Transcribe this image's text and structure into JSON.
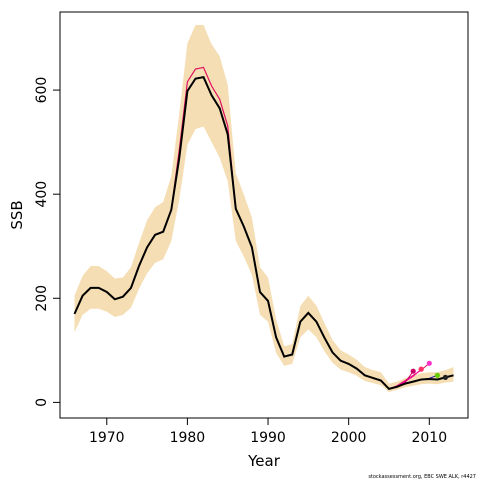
{
  "chart_data": {
    "type": "line",
    "title": "",
    "xlabel": "Year",
    "ylabel": "SSB",
    "footnote": "stockassessment.org, EBC SWE ALK, r4427",
    "xlim": [
      1964.2,
      2014.8
    ],
    "ylim": [
      -30,
      750
    ],
    "xticks": [
      1970,
      1980,
      1990,
      2000,
      2010
    ],
    "yticks": [
      0,
      200,
      400,
      600
    ],
    "grid": false,
    "colors": {
      "band": "#f5deb3",
      "main": "#000000",
      "retro_lines": [
        "#e0115f",
        "#ff00aa",
        "#cc0066",
        "#1a1a99"
      ],
      "retro_points": [
        "#ff33cc",
        "#ff3366",
        "#cc0066",
        "#66cc00",
        "#222222"
      ]
    },
    "years": [
      1966,
      1967,
      1968,
      1969,
      1970,
      1971,
      1972,
      1973,
      1974,
      1975,
      1976,
      1977,
      1978,
      1979,
      1980,
      1981,
      1982,
      1983,
      1984,
      1985,
      1986,
      1987,
      1988,
      1989,
      1990,
      1991,
      1992,
      1993,
      1994,
      1995,
      1996,
      1997,
      1998,
      1999,
      2000,
      2001,
      2002,
      2003,
      2004,
      2005,
      2006,
      2007,
      2008,
      2009,
      2010,
      2011,
      2012,
      2013
    ],
    "series": [
      {
        "role": "estimate",
        "values": [
          170,
          205,
          220,
          220,
          212,
          198,
          203,
          220,
          262,
          298,
          322,
          328,
          370,
          470,
          598,
          622,
          625,
          590,
          565,
          515,
          372,
          338,
          298,
          212,
          195,
          125,
          88,
          92,
          155,
          172,
          155,
          124,
          96,
          80,
          74,
          65,
          52,
          47,
          42,
          26,
          30,
          36,
          40,
          44,
          45,
          44,
          48,
          52
        ]
      },
      {
        "role": "upper-confidence-bound",
        "values": [
          205,
          243,
          262,
          262,
          252,
          238,
          240,
          260,
          306,
          350,
          375,
          385,
          435,
          555,
          690,
          725,
          725,
          688,
          665,
          610,
          440,
          400,
          355,
          260,
          240,
          160,
          108,
          112,
          185,
          205,
          186,
          152,
          120,
          100,
          92,
          82,
          68,
          62,
          58,
          36,
          40,
          46,
          52,
          56,
          58,
          58,
          62,
          68
        ]
      },
      {
        "role": "lower-confidence-bound",
        "values": [
          135,
          168,
          180,
          180,
          174,
          164,
          168,
          182,
          218,
          248,
          268,
          275,
          310,
          390,
          495,
          525,
          530,
          500,
          470,
          425,
          310,
          280,
          245,
          168,
          155,
          95,
          70,
          74,
          125,
          140,
          125,
          98,
          76,
          63,
          58,
          51,
          41,
          37,
          33,
          20,
          24,
          29,
          32,
          35,
          36,
          35,
          38,
          40
        ]
      },
      {
        "role": "retro-2010",
        "years": [
          2005,
          2006,
          2007,
          2008,
          2009,
          2010
        ],
        "values": [
          26,
          32,
          42,
          52,
          62,
          75
        ]
      },
      {
        "role": "retro-2009",
        "years": [
          2005,
          2006,
          2007,
          2008,
          2009
        ],
        "values": [
          26,
          31,
          40,
          50,
          64
        ]
      },
      {
        "role": "retro-2008",
        "years": [
          2005,
          2006,
          2007,
          2008
        ],
        "values": [
          26,
          30,
          38,
          60
        ]
      },
      {
        "role": "retro-2011",
        "years": [
          2009,
          2010,
          2011
        ],
        "values": [
          44,
          46,
          52
        ]
      },
      {
        "role": "retro-2012",
        "years": [
          2010,
          2011,
          2012
        ],
        "values": [
          45,
          44,
          48
        ]
      }
    ],
    "retro_points": [
      {
        "year": 2010,
        "value": 75
      },
      {
        "year": 2009,
        "value": 64
      },
      {
        "year": 2008,
        "value": 60
      },
      {
        "year": 2011,
        "value": 52
      },
      {
        "year": 2012,
        "value": 48
      }
    ]
  }
}
